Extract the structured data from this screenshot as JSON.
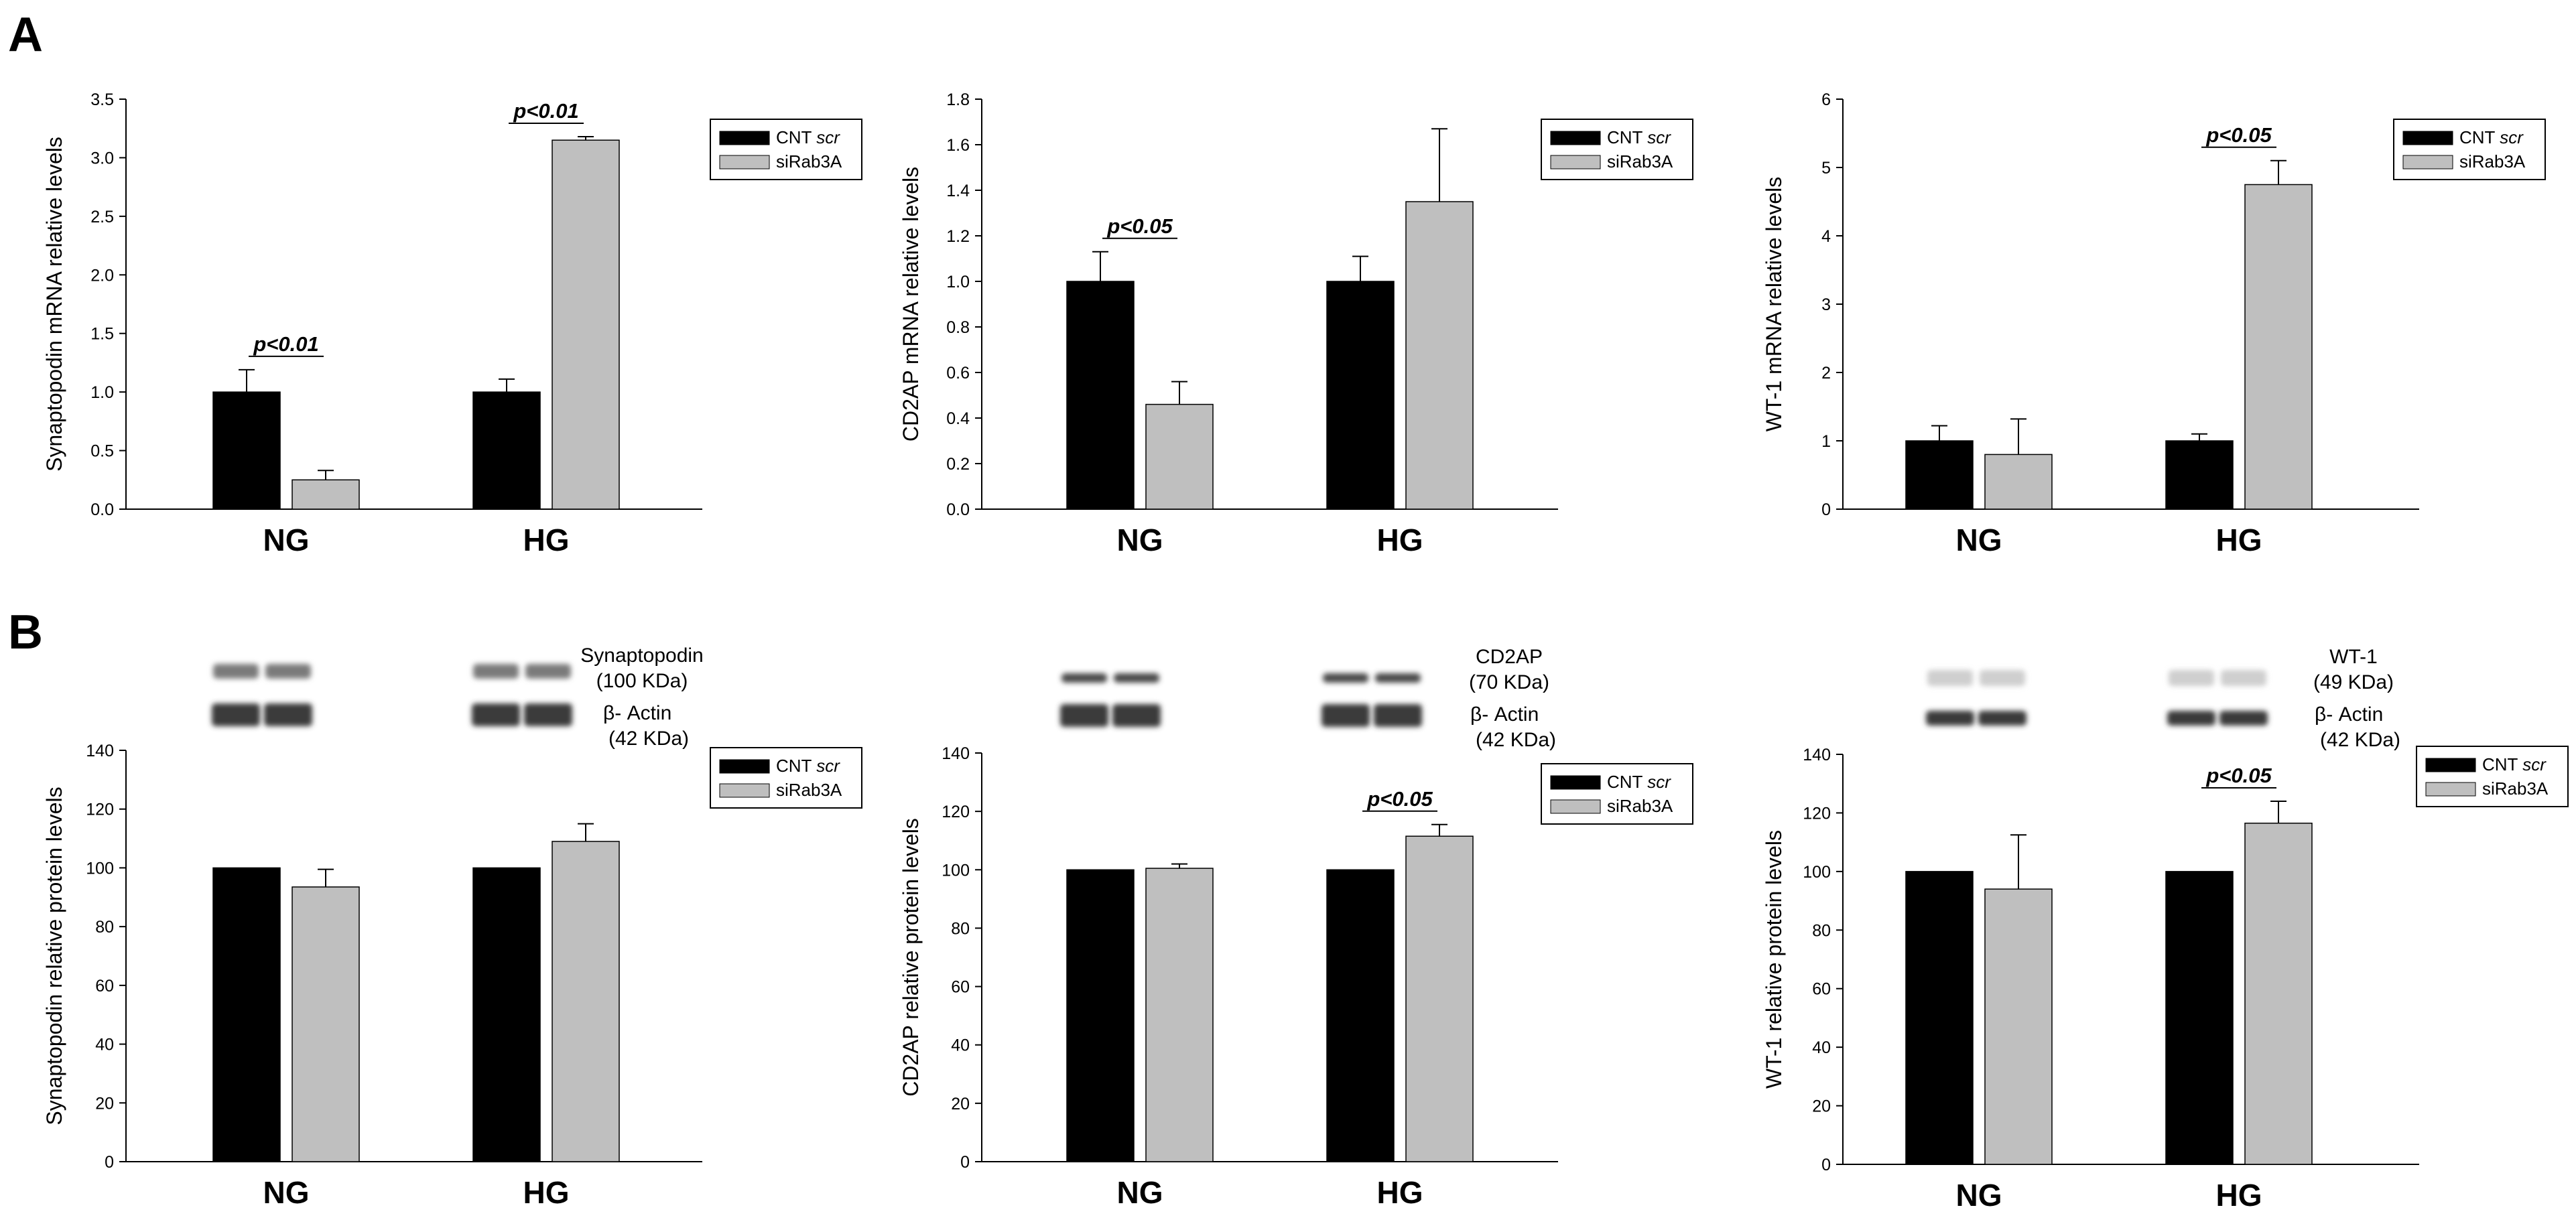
{
  "panels": {
    "A": "A",
    "B": "B"
  },
  "legend": {
    "ctrl_prefix": "CNT ",
    "ctrl_suffix": "scr",
    "treat": "siRab3A"
  },
  "colors": {
    "ctrl": "#000000",
    "treat": "#bfbfbf",
    "axis": "#000000"
  },
  "blots": [
    {
      "top_label": "Synaptopodin",
      "top_kda": "(100 KDa)",
      "actin_label": "β- Actin",
      "actin_kda": "(42 KDa)"
    },
    {
      "top_label": "CD2AP",
      "top_kda": "(70 KDa)",
      "actin_label": "β- Actin",
      "actin_kda": "(42 KDa)"
    },
    {
      "top_label": "WT-1",
      "top_kda": "(49 KDa)",
      "actin_label": "β- Actin",
      "actin_kda": "(42 KDa)"
    }
  ],
  "chart_data": [
    {
      "type": "bar",
      "panel": "A",
      "ylabel": "Synaptopodin mRNA relative levels",
      "categories": [
        "NG",
        "HG"
      ],
      "ylim": [
        0,
        3.5
      ],
      "yticks": [
        "0.0",
        "0.5",
        "1.0",
        "1.5",
        "2.0",
        "2.5",
        "3.0",
        "3.5"
      ],
      "series": [
        {
          "name": "CNT scr",
          "values": [
            1.0,
            1.0
          ],
          "errors": [
            0.19,
            0.11
          ]
        },
        {
          "name": "siRab3A",
          "values": [
            0.25,
            3.15
          ],
          "errors": [
            0.08,
            0.03
          ]
        }
      ],
      "annotations": [
        "p<0.01",
        "p<0.01"
      ]
    },
    {
      "type": "bar",
      "panel": "A",
      "ylabel": "CD2AP mRNA relative levels",
      "categories": [
        "NG",
        "HG"
      ],
      "ylim": [
        0,
        1.8
      ],
      "yticks": [
        "0.0",
        "0.2",
        "0.4",
        "0.6",
        "0.8",
        "1.0",
        "1.2",
        "1.4",
        "1.6",
        "1.8"
      ],
      "series": [
        {
          "name": "CNT scr",
          "values": [
            1.0,
            1.0
          ],
          "errors": [
            0.13,
            0.11
          ]
        },
        {
          "name": "siRab3A",
          "values": [
            0.46,
            1.35
          ],
          "errors": [
            0.1,
            0.32
          ]
        }
      ],
      "annotations": [
        "p<0.05",
        ""
      ]
    },
    {
      "type": "bar",
      "panel": "A",
      "ylabel": "WT-1 mRNA relative levels",
      "categories": [
        "NG",
        "HG"
      ],
      "ylim": [
        0,
        6
      ],
      "yticks": [
        "0",
        "1",
        "2",
        "3",
        "4",
        "5",
        "6"
      ],
      "series": [
        {
          "name": "CNT scr",
          "values": [
            1.0,
            1.0
          ],
          "errors": [
            0.22,
            0.1
          ]
        },
        {
          "name": "siRab3A",
          "values": [
            0.8,
            4.75
          ],
          "errors": [
            0.52,
            0.35
          ]
        }
      ],
      "annotations": [
        "",
        "p<0.05"
      ]
    },
    {
      "type": "bar",
      "panel": "B",
      "ylabel": "Synaptopodin relative protein levels",
      "categories": [
        "NG",
        "HG"
      ],
      "ylim": [
        0,
        140
      ],
      "yticks": [
        "0",
        "20",
        "40",
        "60",
        "80",
        "100",
        "120",
        "140"
      ],
      "series": [
        {
          "name": "CNT scr",
          "values": [
            100,
            100
          ],
          "errors": [
            0,
            0
          ]
        },
        {
          "name": "siRab3A",
          "values": [
            93.5,
            109
          ],
          "errors": [
            6,
            6
          ]
        }
      ],
      "annotations": [
        "",
        ""
      ]
    },
    {
      "type": "bar",
      "panel": "B",
      "ylabel": "CD2AP relative protein levels",
      "categories": [
        "NG",
        "HG"
      ],
      "ylim": [
        0,
        140
      ],
      "yticks": [
        "0",
        "20",
        "40",
        "60",
        "80",
        "100",
        "120",
        "140"
      ],
      "series": [
        {
          "name": "CNT scr",
          "values": [
            100,
            100
          ],
          "errors": [
            0,
            0
          ]
        },
        {
          "name": "siRab3A",
          "values": [
            100.5,
            111.5
          ],
          "errors": [
            1.5,
            4
          ]
        }
      ],
      "annotations": [
        "",
        "p<0.05"
      ]
    },
    {
      "type": "bar",
      "panel": "B",
      "ylabel": "WT-1 relative protein levels",
      "categories": [
        "NG",
        "HG"
      ],
      "ylim": [
        0,
        140
      ],
      "yticks": [
        "0",
        "20",
        "40",
        "60",
        "80",
        "100",
        "120",
        "140"
      ],
      "series": [
        {
          "name": "CNT scr",
          "values": [
            100,
            100
          ],
          "errors": [
            0,
            0
          ]
        },
        {
          "name": "siRab3A",
          "values": [
            94,
            116.5
          ],
          "errors": [
            18.5,
            7.5
          ]
        }
      ],
      "annotations": [
        "",
        "p<0.05"
      ]
    }
  ]
}
